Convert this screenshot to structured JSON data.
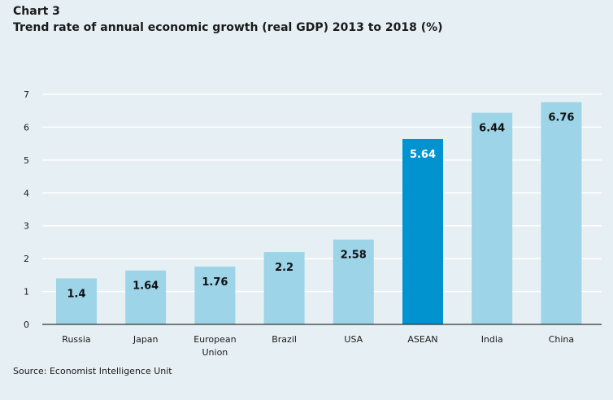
{
  "header": {
    "label": "Chart 3",
    "title": "Trend rate of annual economic growth (real GDP) 2013 to 2018 (%)"
  },
  "source": "Source: Economist Intelligence Unit",
  "colors": {
    "background": "#e6f0f4",
    "bar": "#9dd4e8",
    "highlight_bar": "#0093d0",
    "gridline": "#ffffff",
    "axis": "#333333"
  },
  "chart_data": {
    "type": "bar",
    "title": "Trend rate of annual economic growth (real GDP) 2013 to 2018 (%)",
    "xlabel": "",
    "ylabel": "",
    "categories": [
      "Russia",
      "Japan",
      "European Union",
      "Brazil",
      "USA",
      "ASEAN",
      "India",
      "China"
    ],
    "category_lines": [
      [
        "Russia"
      ],
      [
        "Japan"
      ],
      [
        "European",
        "Union"
      ],
      [
        "Brazil"
      ],
      [
        "USA"
      ],
      [
        "ASEAN"
      ],
      [
        "India"
      ],
      [
        "China"
      ]
    ],
    "values": [
      1.4,
      1.64,
      1.76,
      2.2,
      2.58,
      5.64,
      6.44,
      6.76
    ],
    "data_labels": [
      "1.4",
      "1.64",
      "1.76",
      "2.2",
      "2.58",
      "5.64",
      "6.44",
      "6.76"
    ],
    "highlight": "ASEAN",
    "ylim": [
      0,
      7
    ],
    "yticks": [
      0,
      1,
      2,
      3,
      4,
      5,
      6,
      7
    ],
    "grid": true,
    "legend": "none"
  }
}
